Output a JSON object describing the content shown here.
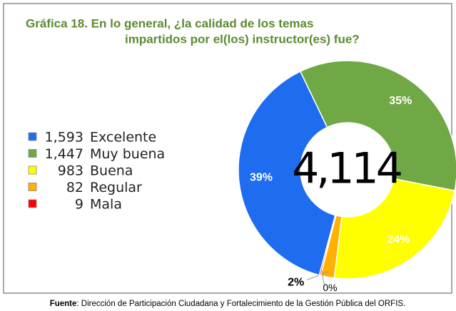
{
  "chart_data": {
    "type": "donut",
    "title_lines": [
      "Gráfica 18. En lo general, ¿la calidad de los temas",
      "impartidos por el(los) instructor(es) fue?"
    ],
    "categories": [
      "Excelente",
      "Muy buena",
      "Buena",
      "Regular",
      "Mala"
    ],
    "values": [
      1593,
      1447,
      983,
      82,
      9
    ],
    "value_labels": [
      "1,593",
      "1,447",
      "983",
      "82",
      "9"
    ],
    "percent_labels": [
      "39%",
      "35%",
      "24%",
      "2%",
      "0%"
    ],
    "colors": [
      "#1e6cf0",
      "#70a845",
      "#ffff00",
      "#ffb000",
      "#ff0000"
    ],
    "total": {
      "value": 4114,
      "label": "4,114"
    },
    "source_label": "Fuente",
    "source_text": ": Dirección de Participación Ciudadana y Fortalecimiento de la Gestión Pública del ORFIS."
  }
}
